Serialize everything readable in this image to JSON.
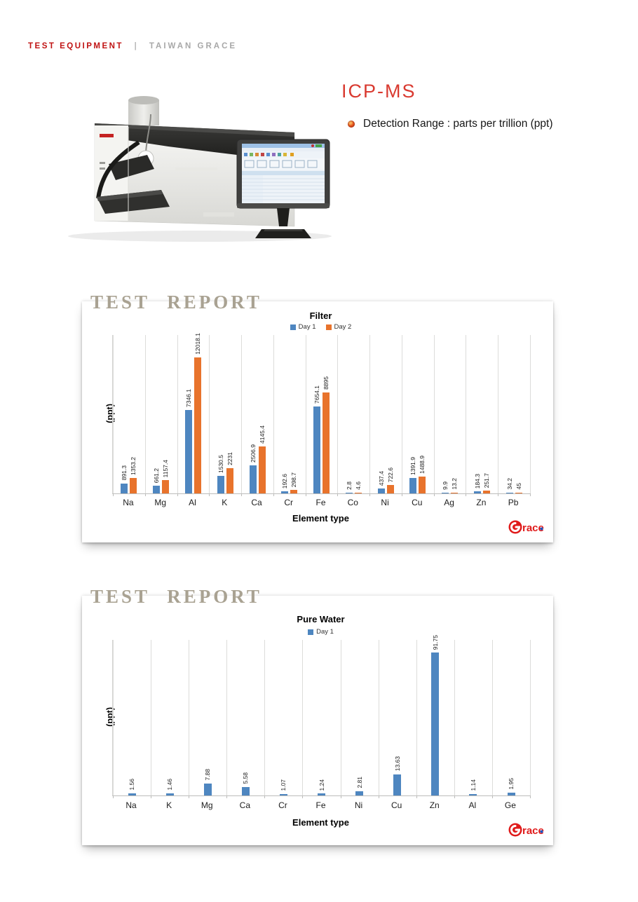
{
  "header": {
    "brand": "TEST EQUIPMENT",
    "separator": "|",
    "company": "TAIWAN GRACE"
  },
  "equipment": {
    "title": "ICP-MS",
    "detection_bullet": "Detection Range : parts per trillion (ppt)",
    "image_caption": "icp-ms-instrument-with-monitor"
  },
  "report_stamp": "TEST REPORT",
  "logo": {
    "g": "G",
    "rest": "race"
  },
  "colors": {
    "header_red": "#c01313",
    "title_red": "#d93a30",
    "bar_blue": "#4e86c0",
    "bar_orange": "#e8732c",
    "stamp_gray": "#a9a292",
    "logo_red": "#e01b1b"
  },
  "chart_data": [
    {
      "type": "bar",
      "title": "Filter",
      "categories": [
        "Na",
        "Mg",
        "Al",
        "K",
        "Ca",
        "Cr",
        "Fe",
        "Co",
        "Ni",
        "Cu",
        "Ag",
        "Zn",
        "Pb"
      ],
      "series": [
        {
          "name": "Day 1",
          "color": "#4e86c0",
          "values": [
            891.3,
            661.2,
            7346.1,
            1530.5,
            2506.9,
            192.6,
            7654.1,
            2.8,
            437.4,
            1391.9,
            9.9,
            184.3,
            34.2
          ]
        },
        {
          "name": "Day 2",
          "color": "#e8732c",
          "values": [
            1353.2,
            1157.4,
            12018.1,
            2231,
            4145.4,
            298.7,
            8895,
            4.6,
            722.6,
            1488.9,
            13.2,
            251.7,
            45
          ]
        }
      ],
      "xlabel": "Element type",
      "ylabel": "(ppt)",
      "ylim": [
        0,
        14000
      ],
      "grid": "vertical-category-lines",
      "legend_position": "top",
      "data_labels": "rotated-90-above-bars"
    },
    {
      "type": "bar",
      "title": "Pure Water",
      "categories": [
        "Na",
        "K",
        "Mg",
        "Ca",
        "Cr",
        "Fe",
        "Ni",
        "Cu",
        "Zn",
        "Al",
        "Ge"
      ],
      "series": [
        {
          "name": "Day 1",
          "color": "#4e86c0",
          "values": [
            1.56,
            1.46,
            7.88,
            5.58,
            1.07,
            1.24,
            2.81,
            13.63,
            91.75,
            1.14,
            1.95
          ]
        }
      ],
      "xlabel": "Element type",
      "ylabel": "(ppt)",
      "ylim": [
        0,
        100
      ],
      "grid": "vertical-category-lines",
      "legend_position": "top",
      "data_labels": "rotated-90-above-bars"
    }
  ]
}
